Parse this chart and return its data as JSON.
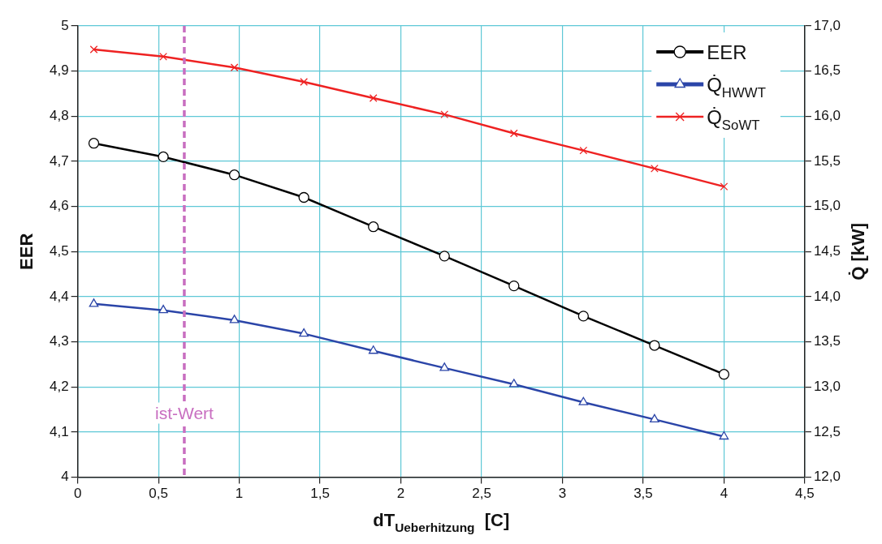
{
  "chart_data": {
    "type": "line",
    "xlabel": "dT$_{Ueberhitzung}$  [C]",
    "ylabel": "EER",
    "y2label": "Q̇ [kW]",
    "x": [
      0.1,
      0.53,
      0.97,
      1.4,
      1.83,
      2.27,
      2.7,
      3.13,
      3.57,
      4.0
    ],
    "series": [
      {
        "name": "EER",
        "color": "#000000",
        "marker": "circle",
        "values": [
          4.74,
          4.71,
          4.67,
          4.62,
          4.555,
          4.49,
          4.424,
          4.357,
          4.292,
          4.228
        ]
      },
      {
        "name": "Q̇$_{HWWT}$",
        "color": "#2b45a8",
        "marker": "triangle",
        "axis": "y2",
        "values": [
          13.92,
          13.85,
          13.74,
          13.59,
          13.4,
          13.21,
          13.03,
          12.83,
          12.64,
          12.45
        ]
      },
      {
        "name": "Q̇$_{SoWT}$",
        "color": "#ee2222",
        "marker": "cross",
        "axis": "y2",
        "values": [
          16.74,
          16.66,
          16.54,
          16.38,
          16.2,
          16.02,
          15.81,
          15.62,
          15.42,
          15.22
        ]
      }
    ],
    "xlim": [
      0,
      4.5
    ],
    "xticks": [
      0,
      {
        "value": 0.5,
        "label": "0,5"
      },
      1,
      {
        "value": 1.5,
        "label": "1,5"
      },
      2,
      {
        "value": 2.5,
        "label": "2,5"
      },
      3,
      {
        "value": 3.5,
        "label": "3,5"
      },
      4,
      {
        "value": 4.5,
        "label": "4,5"
      }
    ],
    "ylim": [
      4,
      5
    ],
    "yticks": [
      4,
      {
        "value": 4.1,
        "label": "4,1"
      },
      {
        "value": 4.2,
        "label": "4,2"
      },
      {
        "value": 4.3,
        "label": "4,3"
      },
      {
        "value": 4.4,
        "label": "4,4"
      },
      {
        "value": 4.5,
        "label": "4,5"
      },
      {
        "value": 4.6,
        "label": "4,6"
      },
      {
        "value": 4.7,
        "label": "4,7"
      },
      {
        "value": 4.8,
        "label": "4,8"
      },
      {
        "value": 4.9,
        "label": "4,9"
      },
      5
    ],
    "y2lim": [
      12,
      17
    ],
    "y2ticks": [
      {
        "value": 12,
        "label": "12,0"
      },
      {
        "value": 12.5,
        "label": "12,5"
      },
      {
        "value": 13,
        "label": "13,0"
      },
      {
        "value": 13.5,
        "label": "13,5"
      },
      {
        "value": 14,
        "label": "14,0"
      },
      {
        "value": 14.5,
        "label": "14,5"
      },
      {
        "value": 15,
        "label": "15,0"
      },
      {
        "value": 15.5,
        "label": "15,5"
      },
      {
        "value": 16,
        "label": "16,0"
      },
      {
        "value": 16.5,
        "label": "16,5"
      },
      {
        "value": 17,
        "label": "17,0"
      }
    ],
    "ref_lines": [
      {
        "axis": "x",
        "value": 0.66,
        "label": "ist-Wert",
        "color": "#c86ec0",
        "line_style": "dashed"
      }
    ],
    "grid": true,
    "legend": "top right",
    "line_style": "solid"
  }
}
